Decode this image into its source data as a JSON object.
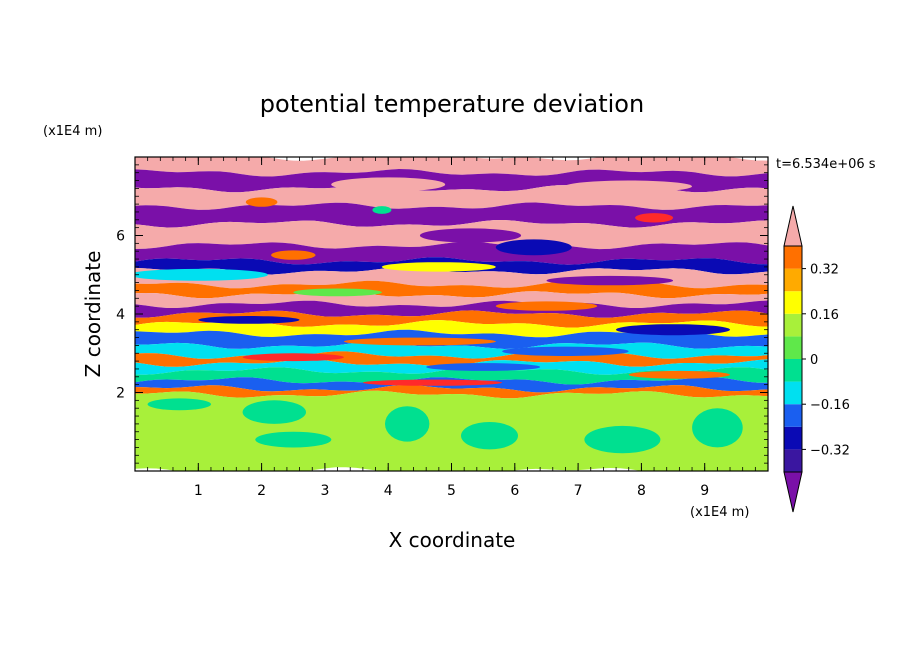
{
  "chart_data": {
    "type": "heatmap",
    "title": "potential temperature deviation",
    "xlabel": "X coordinate",
    "ylabel": "Z coordinate",
    "x_unit": "(x1E4 m)",
    "y_unit": "(x1E4 m)",
    "time_label": "t=6.534e+06 s",
    "xlim": [
      0,
      10
    ],
    "ylim": [
      0,
      8
    ],
    "x_ticks": [
      1,
      2,
      3,
      4,
      5,
      6,
      7,
      8,
      9
    ],
    "y_ticks": [
      2,
      4,
      6
    ],
    "colorbar": {
      "levels": [
        -0.44,
        -0.4,
        -0.32,
        -0.24,
        -0.16,
        -0.08,
        0,
        0.08,
        0.16,
        0.24,
        0.32,
        0.4,
        0.44
      ],
      "labels": [
        0.32,
        0.16,
        0,
        -0.16,
        -0.32
      ],
      "label_text": [
        "0.32",
        "0.16",
        "0",
        "−0.16",
        "−0.32"
      ],
      "colors": [
        "#7a10a8",
        "#3a16a0",
        "#0a0ab4",
        "#1a5ff0",
        "#00e0f0",
        "#00e090",
        "#5fe84a",
        "#a8f03a",
        "#ffff00",
        "#ffaa00",
        "#ff7000",
        "#ff2a2a",
        "#f5aaaa"
      ],
      "extend": "both"
    },
    "bands": [
      {
        "z0": 7.6,
        "z1": 8.0,
        "color": "#f5aaaa"
      },
      {
        "z0": 7.2,
        "z1": 7.6,
        "color": "#7a10a8"
      },
      {
        "z0": 6.75,
        "z1": 7.2,
        "color": "#f5aaaa"
      },
      {
        "z0": 6.3,
        "z1": 6.75,
        "color": "#7a10a8"
      },
      {
        "z0": 5.75,
        "z1": 6.3,
        "color": "#f5aaaa"
      },
      {
        "z0": 5.35,
        "z1": 5.75,
        "color": "#7a10a8"
      },
      {
        "z0": 5.1,
        "z1": 5.35,
        "color": "#0a0ab4"
      },
      {
        "z0": 4.75,
        "z1": 5.1,
        "color": "#f5aaaa"
      },
      {
        "z0": 4.5,
        "z1": 4.75,
        "color": "#ff7000"
      },
      {
        "z0": 4.25,
        "z1": 4.5,
        "color": "#f5aaaa"
      },
      {
        "z0": 4.0,
        "z1": 4.25,
        "color": "#7a10a8"
      },
      {
        "z0": 3.75,
        "z1": 4.0,
        "color": "#ff7000"
      },
      {
        "z0": 3.5,
        "z1": 3.75,
        "color": "#ffff00"
      },
      {
        "z0": 3.2,
        "z1": 3.5,
        "color": "#1a5ff0"
      },
      {
        "z0": 2.95,
        "z1": 3.2,
        "color": "#00e0f0"
      },
      {
        "z0": 2.75,
        "z1": 2.95,
        "color": "#ff7000"
      },
      {
        "z0": 2.55,
        "z1": 2.75,
        "color": "#00e0f0"
      },
      {
        "z0": 2.3,
        "z1": 2.55,
        "color": "#00e090"
      },
      {
        "z0": 2.1,
        "z1": 2.3,
        "color": "#1a5ff0"
      },
      {
        "z0": 1.95,
        "z1": 2.1,
        "color": "#ff7000"
      },
      {
        "z0": 0.0,
        "z1": 1.95,
        "color": "#a8f03a"
      }
    ],
    "blobs": [
      {
        "x": 4.0,
        "z": 7.3,
        "rx": 0.9,
        "rz": 0.18,
        "color": "#f5aaaa"
      },
      {
        "x": 7.8,
        "z": 7.25,
        "rx": 1.0,
        "rz": 0.15,
        "color": "#f5aaaa"
      },
      {
        "x": 2.0,
        "z": 6.85,
        "rx": 0.25,
        "rz": 0.12,
        "color": "#ff7000"
      },
      {
        "x": 3.9,
        "z": 6.65,
        "rx": 0.15,
        "rz": 0.1,
        "color": "#00e090"
      },
      {
        "x": 8.2,
        "z": 6.45,
        "rx": 0.3,
        "rz": 0.12,
        "color": "#ff2a2a"
      },
      {
        "x": 5.3,
        "z": 6.0,
        "rx": 0.8,
        "rz": 0.18,
        "color": "#7a10a8"
      },
      {
        "x": 6.3,
        "z": 5.7,
        "rx": 0.6,
        "rz": 0.2,
        "color": "#0a0ab4"
      },
      {
        "x": 2.5,
        "z": 5.5,
        "rx": 0.35,
        "rz": 0.12,
        "color": "#ff7000"
      },
      {
        "x": 4.8,
        "z": 5.2,
        "rx": 0.9,
        "rz": 0.12,
        "color": "#ffff00"
      },
      {
        "x": 1.0,
        "z": 5.0,
        "rx": 1.1,
        "rz": 0.15,
        "color": "#00e0f0"
      },
      {
        "x": 7.5,
        "z": 4.85,
        "rx": 1.0,
        "rz": 0.12,
        "color": "#7a10a8"
      },
      {
        "x": 3.2,
        "z": 4.55,
        "rx": 0.7,
        "rz": 0.1,
        "color": "#5fe84a"
      },
      {
        "x": 6.5,
        "z": 4.2,
        "rx": 0.8,
        "rz": 0.12,
        "color": "#ff7000"
      },
      {
        "x": 1.8,
        "z": 3.85,
        "rx": 0.8,
        "rz": 0.1,
        "color": "#0a0ab4"
      },
      {
        "x": 8.5,
        "z": 3.6,
        "rx": 0.9,
        "rz": 0.14,
        "color": "#0a0ab4"
      },
      {
        "x": 4.5,
        "z": 3.3,
        "rx": 1.2,
        "rz": 0.1,
        "color": "#ff7000"
      },
      {
        "x": 6.8,
        "z": 3.05,
        "rx": 1.0,
        "rz": 0.12,
        "color": "#1a5ff0"
      },
      {
        "x": 2.5,
        "z": 2.9,
        "rx": 0.8,
        "rz": 0.1,
        "color": "#ff2a2a"
      },
      {
        "x": 5.5,
        "z": 2.65,
        "rx": 0.9,
        "rz": 0.1,
        "color": "#1a5ff0"
      },
      {
        "x": 8.6,
        "z": 2.45,
        "rx": 0.8,
        "rz": 0.1,
        "color": "#ff7000"
      },
      {
        "x": 4.7,
        "z": 2.25,
        "rx": 1.1,
        "rz": 0.08,
        "color": "#ff2a2a"
      },
      {
        "x": 2.2,
        "z": 1.5,
        "rx": 0.5,
        "rz": 0.3,
        "color": "#00e090"
      },
      {
        "x": 2.5,
        "z": 0.8,
        "rx": 0.6,
        "rz": 0.2,
        "color": "#00e090"
      },
      {
        "x": 4.3,
        "z": 1.2,
        "rx": 0.35,
        "rz": 0.45,
        "color": "#00e090"
      },
      {
        "x": 5.6,
        "z": 0.9,
        "rx": 0.45,
        "rz": 0.35,
        "color": "#00e090"
      },
      {
        "x": 7.7,
        "z": 0.8,
        "rx": 0.6,
        "rz": 0.35,
        "color": "#00e090"
      },
      {
        "x": 9.2,
        "z": 1.1,
        "rx": 0.4,
        "rz": 0.5,
        "color": "#00e090"
      },
      {
        "x": 0.7,
        "z": 1.7,
        "rx": 0.5,
        "rz": 0.15,
        "color": "#00e090"
      }
    ]
  }
}
